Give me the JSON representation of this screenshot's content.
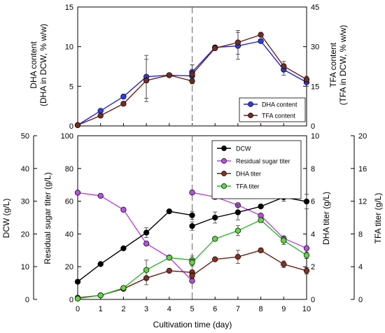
{
  "chart_data": [
    {
      "type": "line",
      "panel": "top",
      "xlim": [
        0,
        10
      ],
      "x": [
        0,
        1,
        2,
        3,
        4,
        5,
        5,
        6,
        7,
        8,
        9,
        10
      ],
      "left_axis": {
        "label_line1": "DHA content",
        "label_line2": "(DHA in DCW, % w/w)",
        "ylim": [
          0,
          15
        ],
        "ticks": [
          "0",
          "5",
          "10",
          "15"
        ]
      },
      "right_axis": {
        "label_line1": "TFA content",
        "label_line2": "(TFA in DCW, % w/w)",
        "ylim": [
          0,
          45
        ],
        "ticks": [
          "0",
          "15",
          "30",
          "45"
        ]
      },
      "legend_position": "bottom-right",
      "series": [
        {
          "name": "DHA content",
          "axis": "left",
          "color": "#1f24d6",
          "marker": "#2c3cf0",
          "values": [
            0.1,
            1.9,
            3.7,
            6.2,
            6.4,
            6.3,
            6.8,
            9.9,
            10.1,
            10.7,
            7.1,
            5.5
          ],
          "errors": [
            0,
            0,
            0,
            2.7,
            0,
            0.4,
            0.9,
            0,
            1.7,
            0,
            0.7,
            0.5
          ]
        },
        {
          "name": "TFA content",
          "axis": "right",
          "color": "#6e1f14",
          "marker": "#7a2a1e",
          "values": [
            0.3,
            3.9,
            8.4,
            17.2,
            19.2,
            17.0,
            19.5,
            29.4,
            31.6,
            34.5,
            22.6,
            17.6
          ],
          "errors": [
            0,
            0,
            0,
            8.0,
            0,
            0,
            3.6,
            0,
            4.5,
            0,
            1.8,
            1.2
          ]
        }
      ]
    },
    {
      "type": "line",
      "panel": "bottom",
      "xlabel": "Cultivation time (day)",
      "xlim": [
        0,
        10
      ],
      "xticks": [
        "0",
        "1",
        "2",
        "3",
        "4",
        "5",
        "6",
        "7",
        "8",
        "9",
        "10"
      ],
      "x": [
        0,
        1,
        2,
        3,
        4,
        5,
        5,
        6,
        7,
        8,
        9,
        10
      ],
      "axes": {
        "dcw": {
          "label": "DCW (g/L)",
          "ylim": [
            0,
            50
          ],
          "ticks": [
            "0",
            "10",
            "20",
            "30",
            "40",
            "50"
          ]
        },
        "sugar": {
          "label": "Residual sugar titer (g/L)",
          "ylim": [
            0,
            100
          ],
          "ticks": [
            "0",
            "20",
            "40",
            "60",
            "80",
            "100"
          ]
        },
        "dha": {
          "label": "DHA titer (g/L)",
          "ylim": [
            0,
            10
          ],
          "ticks": [
            "0",
            "2",
            "4",
            "6",
            "8",
            "10"
          ]
        },
        "tfa": {
          "label": "TFA titer (g/L)",
          "ylim": [
            0,
            20
          ],
          "ticks": [
            "0",
            "4",
            "8",
            "12",
            "16",
            "20"
          ]
        }
      },
      "legend_position": "top-right",
      "series": [
        {
          "name": "DCW",
          "axis": "dcw",
          "color": "#000000",
          "marker": "#000000",
          "values": [
            5.4,
            10.8,
            15.6,
            20.4,
            26.9,
            25.7,
            22.4,
            25.0,
            26.6,
            28.4,
            31.2,
            29.9
          ],
          "errors": [
            0,
            0,
            0,
            1.5,
            0,
            1.2,
            1.3,
            1.7,
            2.3,
            0,
            1.2,
            2.2
          ]
        },
        {
          "name": "Residual sugar titer",
          "axis": "sugar",
          "color": "#c040e0",
          "marker": "#b74fe0",
          "values": [
            65.2,
            63.3,
            54.8,
            34.1,
            25.6,
            11.4,
            65.3,
            62.6,
            57.6,
            51.2,
            37.3,
            31.3
          ],
          "errors": [
            0,
            0,
            0,
            0,
            0,
            0,
            0,
            0,
            0,
            0,
            0,
            0
          ]
        },
        {
          "name": "DHA titer",
          "axis": "dha",
          "color": "#6e1f14",
          "marker": "#8a3020",
          "values": [
            0.1,
            0.25,
            0.65,
            1.3,
            1.75,
            1.65,
            1.45,
            2.45,
            2.6,
            3.0,
            2.15,
            1.75
          ],
          "errors": [
            0,
            0,
            0,
            0.4,
            0,
            0.15,
            0.2,
            0,
            0.4,
            0,
            0.2,
            0.2
          ]
        },
        {
          "name": "TFA titer",
          "axis": "tfa",
          "color": "#2db82d",
          "marker": "#5fd642",
          "values": [
            0.1,
            0.5,
            1.4,
            3.6,
            5.1,
            4.8,
            4.5,
            7.4,
            8.4,
            9.7,
            7.2,
            5.4
          ],
          "errors": [
            0,
            0,
            0,
            1.2,
            0,
            0.5,
            0.4,
            0,
            0.6,
            0.3,
            0.5,
            0.4
          ]
        }
      ]
    }
  ]
}
